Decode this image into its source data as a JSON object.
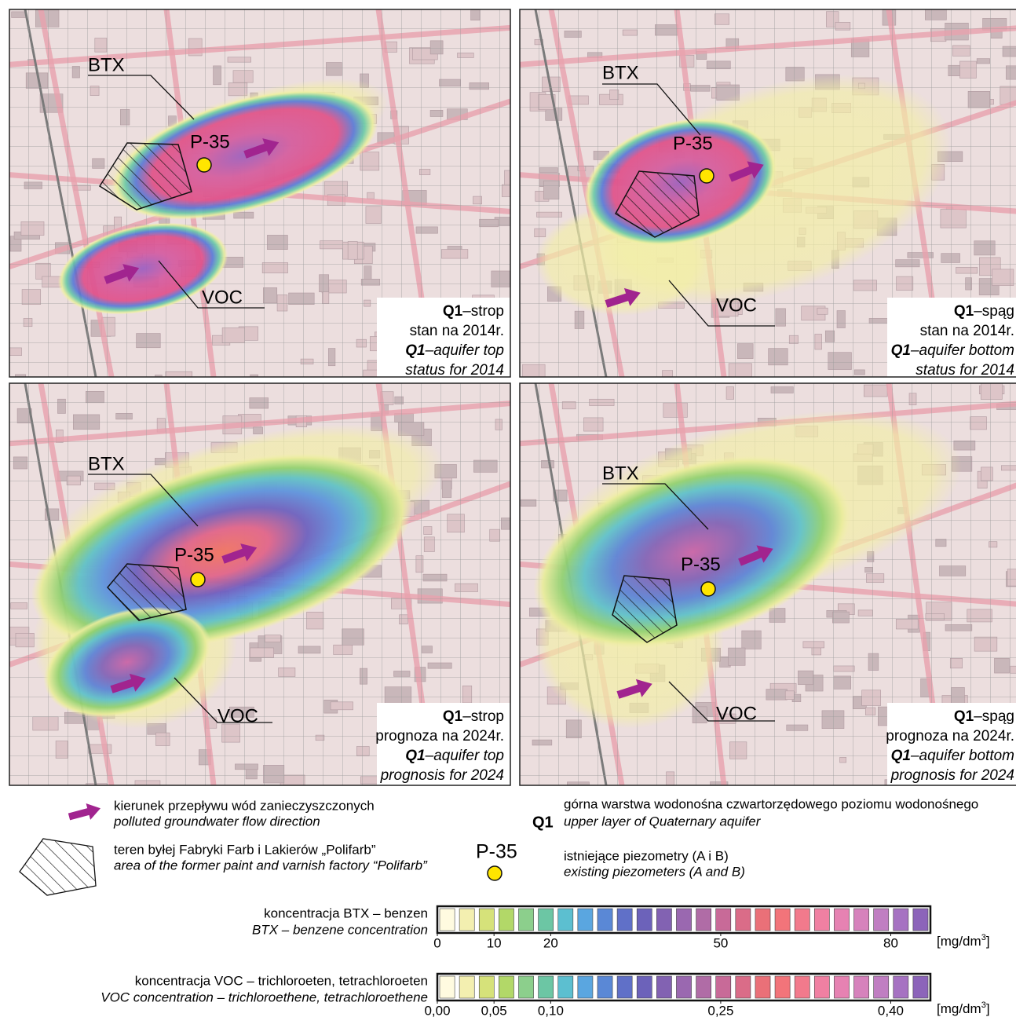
{
  "panels": [
    {
      "btx_label": "BTX",
      "voc_label": "VOC",
      "piezometer": "P-35",
      "caption": {
        "pl": {
          "code": "Q1",
          "text": "–strop"
        },
        "pl_line2": "stan na 2014r.",
        "en": {
          "code": "Q1",
          "text": "–aquifer top"
        },
        "en_line2": "status for 2014"
      }
    },
    {
      "btx_label": "BTX",
      "voc_label": "VOC",
      "piezometer": "P-35",
      "caption": {
        "pl": {
          "code": "Q1",
          "text": "–spąg"
        },
        "pl_line2": "stan na 2014r.",
        "en": {
          "code": "Q1",
          "text": "–aquifer bottom"
        },
        "en_line2": "status for 2014"
      }
    },
    {
      "btx_label": "BTX",
      "voc_label": "VOC",
      "piezometer": "P-35",
      "caption": {
        "pl": {
          "code": "Q1",
          "text": "–strop"
        },
        "pl_line2": "prognoza na 2024r.",
        "en": {
          "code": "Q1",
          "text": "–aquifer top"
        },
        "en_line2": "prognosis for 2024"
      }
    },
    {
      "btx_label": "BTX",
      "voc_label": "VOC",
      "piezometer": "P-35",
      "caption": {
        "pl": {
          "code": "Q1",
          "text": "–spąg"
        },
        "pl_line2": "prognoza na 2024r.",
        "en": {
          "code": "Q1",
          "text": "–aquifer bottom"
        },
        "en_line2": "prognosis for 2024"
      }
    }
  ],
  "legend": {
    "flow": {
      "pl": "kierunek przepływu wód zanieczyszczonych",
      "en": "polluted groundwater flow direction"
    },
    "factory": {
      "pl": "teren byłej Fabryki Farb i Lakierów „Polifarb”",
      "en": "area of the former paint and varnish factory “Polifarb”"
    },
    "aquifer": {
      "code": "Q1",
      "pl": "górna warstwa wodonośna czwartorzędowego poziomu wodonośnego",
      "en": "upper layer of Quaternary aquifer"
    },
    "piezometer": {
      "label": "P-35",
      "pl": "istniejące piezometry (A i B)",
      "en": "existing piezometers (A and B)"
    },
    "scales": [
      {
        "pl": "koncentracja BTX – benzen",
        "en": "BTX – benzene concentration",
        "xlim": [
          0,
          87
        ],
        "xticks": [
          0,
          10,
          20,
          50,
          80
        ],
        "unit": {
          "base": "[mg/dm",
          "sup": "3",
          "close": "]"
        },
        "colors": [
          "#fffbe0",
          "#f3efb0",
          "#d6e27a",
          "#b2d868",
          "#8ccf8c",
          "#6cc6a4",
          "#5cbfd0",
          "#5aa6e0",
          "#5a88d6",
          "#6070c8",
          "#6c62ba",
          "#8262b2",
          "#9a68b0",
          "#b06ca6",
          "#c86a98",
          "#da6c88",
          "#ea7078",
          "#f2747a",
          "#f27a8c",
          "#f080a2",
          "#e682b2",
          "#d682bc",
          "#c07ec2",
          "#a672c2",
          "#8c64ba"
        ]
      },
      {
        "pl": "koncentracja VOC – trichloroeten, tetrachloroeten",
        "en": "VOC concentration – trichloroethene, tetrachloroethene",
        "xlim": [
          0,
          0.435
        ],
        "xticks": [
          {
            "value": 0,
            "label": "0,00"
          },
          {
            "value": 0.05,
            "label": "0,05"
          },
          {
            "value": 0.1,
            "label": "0,10"
          },
          {
            "value": 0.25,
            "label": "0,25"
          },
          {
            "value": 0.4,
            "label": "0,40"
          }
        ],
        "unit": {
          "base": "[mg/dm",
          "sup": "3",
          "close": "]"
        },
        "colors": [
          "#fffbe0",
          "#f3efb0",
          "#d6e27a",
          "#b2d868",
          "#8ccf8c",
          "#6cc6a4",
          "#5cbfd0",
          "#5aa6e0",
          "#5a88d6",
          "#6070c8",
          "#6c62ba",
          "#8262b2",
          "#9a68b0",
          "#b06ca6",
          "#c86a98",
          "#da6c88",
          "#ea7078",
          "#f2747a",
          "#f27a8c",
          "#f080a2",
          "#e682b2",
          "#d682bc",
          "#c07ec2",
          "#a672c2",
          "#8c64ba"
        ]
      }
    ]
  }
}
